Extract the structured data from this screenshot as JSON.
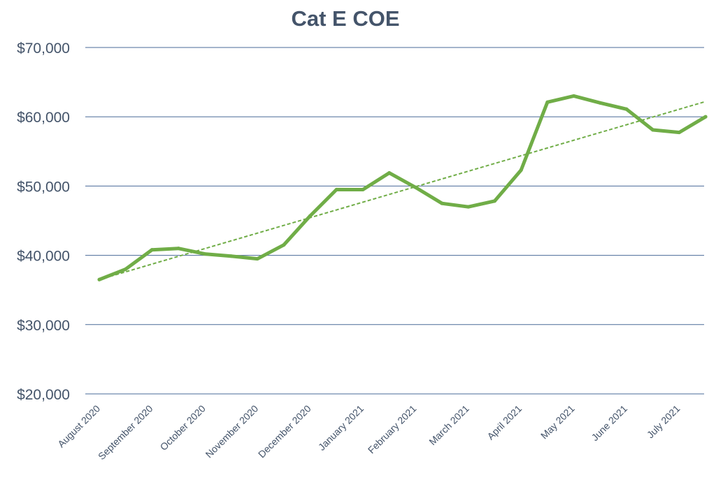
{
  "chart_data": {
    "type": "line",
    "title": "Cat E COE",
    "xlabel": "",
    "ylabel": "",
    "ylim": [
      20000,
      70000
    ],
    "y_ticks": [
      "$20,000",
      "$30,000",
      "$40,000",
      "$50,000",
      "$60,000",
      "$70,000"
    ],
    "y_tick_values": [
      20000,
      30000,
      40000,
      50000,
      60000,
      70000
    ],
    "x_tick_labels": [
      "August 2020",
      "September 2020",
      "October 2020",
      "November 2020",
      "December 2020",
      "January 2021",
      "February 2021",
      "March 2021",
      "April 2021",
      "May 2021",
      "June 2021",
      "July 2021"
    ],
    "x_tick_period_index": [
      0,
      2,
      4,
      6,
      8,
      10,
      12,
      14,
      16,
      18,
      20,
      22
    ],
    "grid": true,
    "legend": "none",
    "series": [
      {
        "values": [
          36501,
          38001,
          40801,
          41000,
          40201,
          39889,
          39500,
          41501,
          45700,
          49500,
          49490,
          51900,
          49801,
          47500,
          47000,
          47840,
          52301,
          62111,
          63000,
          62002,
          61100,
          58100,
          57741,
          60001
        ],
        "color": "#70ad47",
        "style": "solid"
      }
    ],
    "trendline": {
      "type": "linear",
      "start_value": 36500,
      "end_value": 62200,
      "color": "#70ad47",
      "style": "dashed"
    }
  }
}
